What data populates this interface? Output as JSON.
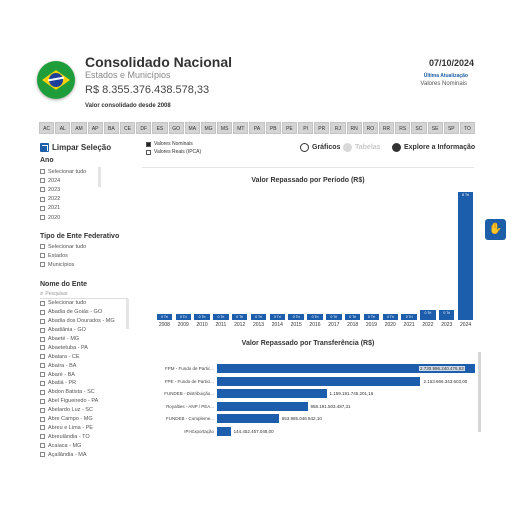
{
  "header": {
    "title": "Consolidado Nacional",
    "subtitle": "Estados e Municípios",
    "total": "R$ 8.355.376.438.578,33",
    "note": "Valor consolidado desde 2008",
    "date": "07/10/2024",
    "last_update_label": "Última Atualização",
    "values_label": "Valores Nominais"
  },
  "states": [
    "AC",
    "AL",
    "AM",
    "AP",
    "BA",
    "CE",
    "DF",
    "ES",
    "GO",
    "MA",
    "MG",
    "MS",
    "MT",
    "PA",
    "PB",
    "PE",
    "PI",
    "PR",
    "RJ",
    "RN",
    "RO",
    "RR",
    "RS",
    "SC",
    "SE",
    "SP",
    "TO"
  ],
  "clear_label": "Limpar Seleção",
  "value_options": [
    {
      "label": "Valores Nominais",
      "selected": true
    },
    {
      "label": "Valores Reais (IPCA)",
      "selected": false
    }
  ],
  "toolbar": {
    "graficos": "Gráficos",
    "tabelas": "Tabelas",
    "explore": "Explore a Informação"
  },
  "ano": {
    "title": "Ano",
    "items": [
      "Selecionar tudo",
      "2024",
      "2023",
      "2022",
      "2021",
      "2020"
    ]
  },
  "tipo": {
    "title": "Tipo de Ente Federativo",
    "items": [
      "Selecionar tudo",
      "Estados",
      "Municípios"
    ]
  },
  "nome": {
    "title": "Nome do Ente",
    "search_placeholder": "Pesquisar",
    "items": [
      "Selecionar tudo",
      "Abadia de Goiás - GO",
      "Abadia dos Dourados - MG",
      "Abadiânia - GO",
      "Abaeté - MG",
      "Abaetetuba - PA",
      "Abaiara - CE",
      "Abaíra - BA",
      "Abaré - BA",
      "Abatiá - PR",
      "Abdon Batista - SC",
      "Abel Figueiredo - PA",
      "Abelardo Luz - SC",
      "Abre Campo - MG",
      "Abreu e Lima - PE",
      "Abreulândia - TO",
      "Acaiaca - MG",
      "Açailândia - MA"
    ]
  },
  "chart_data": [
    {
      "type": "bar",
      "title": "Valor Repassado por Período (R$)",
      "categories": [
        "2008",
        "2009",
        "2010",
        "2011",
        "2012",
        "2013",
        "2014",
        "2015",
        "2016",
        "2017",
        "2018",
        "2019",
        "2020",
        "2021",
        "2022",
        "2023",
        "2024"
      ],
      "values": [
        0,
        0,
        0,
        0,
        0,
        0,
        0,
        0,
        0,
        0,
        0,
        0,
        0,
        0,
        0.3,
        0.3,
        8
      ],
      "labels": [
        "0 Tri",
        "0 Tri",
        "0 Tri",
        "0 Tri",
        "0 Tri",
        "0 Tri",
        "0 Tri",
        "0 Tri",
        "0 Tri",
        "0 Tri",
        "0 Tri",
        "0 Tri",
        "0 Tri",
        "0 Tri",
        "0 Tri",
        "0 Tri",
        "8 Tri"
      ],
      "unit": "Tri"
    },
    {
      "type": "bar",
      "orientation": "horizontal",
      "title": "Valor Repassado por Transferência (R$)",
      "categories": [
        "FPM - Fundo de Partic...",
        "FPE - Fundo de Partici...",
        "FUNDEB - Distribuição...",
        "Royalties - ANP / PEA...",
        "FUNDEB - Compleme...",
        "IPI-Exportação"
      ],
      "values": [
        2730996240476.53,
        2153666343603.0,
        1159191745201.16,
        958191503487.31,
        653985046842.1,
        144452457048.0
      ],
      "labels": [
        "2.730.996.240.476,53",
        "2.153.666.343.603,00",
        "1.159.191.745.201,16",
        "958.191.503.487,31",
        "653.985.046.842,10",
        "144.452.457.048,00"
      ]
    }
  ],
  "colors": {
    "accent": "#1c5eab",
    "brand_green": "#1f9d3a",
    "brand_yellow": "#f5d10c"
  },
  "icons": {
    "clear": "eraser-icon",
    "graficos": "chart-icon",
    "tabelas": "table-icon",
    "explore": "explore-icon",
    "accessibility": "accessibility-icon"
  }
}
